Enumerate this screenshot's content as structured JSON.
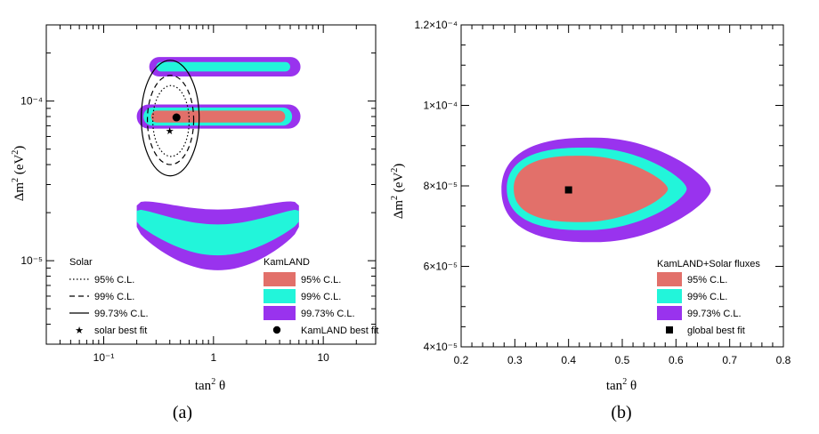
{
  "colors": {
    "c95": "#e2706a",
    "c99": "#22f5da",
    "c9973": "#9933ee"
  },
  "chart_data": [
    {
      "type": "area",
      "panel": "a",
      "caption": "(a)",
      "xlabel": "tan² θ",
      "ylabel": "Δm² (eV²)",
      "xscale": "log",
      "yscale": "log",
      "xlim": [
        0.03,
        30
      ],
      "ylim": [
        3e-06,
        0.0003
      ],
      "xticks": [
        {
          "v": 0.1,
          "label": "10⁻¹"
        },
        {
          "v": 1,
          "label": "1"
        },
        {
          "v": 10,
          "label": "10"
        }
      ],
      "yticks": [
        {
          "v": 1e-05,
          "label": "10⁻⁵"
        },
        {
          "v": 0.0001,
          "label": "10⁻⁴"
        }
      ],
      "legend_solar": {
        "title": "Solar",
        "items": [
          {
            "style": "dotted",
            "label": "95% C.L."
          },
          {
            "style": "dashed",
            "label": "99% C.L."
          },
          {
            "style": "solid",
            "label": "99.73% C.L."
          },
          {
            "style": "star",
            "label": "solar best fit"
          }
        ]
      },
      "legend_kamland": {
        "title": "KamLAND",
        "items": [
          {
            "level": "c95",
            "label": "95% C.L."
          },
          {
            "level": "c99",
            "label": "99% C.L."
          },
          {
            "level": "c9973",
            "label": "99.73% C.L."
          },
          {
            "level": "dot",
            "label": "KamLAND best fit"
          }
        ]
      },
      "kamland_best_fit": {
        "x": 0.46,
        "y": 7.9e-05
      },
      "solar_best_fit": {
        "x": 0.4,
        "y": 6.5e-05
      },
      "kamland_islands": [
        {
          "level": "c9973",
          "xmin": 0.26,
          "xmax": 6.2,
          "y": 0.000164,
          "hw": 1.15
        },
        {
          "level": "c99",
          "xmin": 0.3,
          "xmax": 5.0,
          "y": 0.000164,
          "hw": 1.07
        },
        {
          "level": "c9973",
          "xmin": 0.2,
          "xmax": 6.2,
          "y": 8e-05,
          "hw": 1.19
        },
        {
          "level": "c99",
          "xmin": 0.23,
          "xmax": 5.2,
          "y": 8e-05,
          "hw": 1.14
        },
        {
          "level": "c95",
          "xmin": 0.27,
          "xmax": 4.5,
          "y": 8e-05,
          "hw": 1.09
        }
      ],
      "kamland_band": {
        "xmin": 0.2,
        "xmax": 6.0,
        "ymid_ends": 1.9e-05,
        "ymid_center": 1.35e-05,
        "hw_c9973": 1.55,
        "hw_c99": 1.25
      },
      "solar_contours": [
        {
          "style": "dotted",
          "xmin": 0.28,
          "xmax": 0.6,
          "ymin": 4.5e-05,
          "ymax": 0.000125
        },
        {
          "style": "dashed",
          "xmin": 0.25,
          "xmax": 0.66,
          "ymin": 4e-05,
          "ymax": 0.000145
        },
        {
          "style": "solid",
          "xmin": 0.22,
          "xmax": 0.74,
          "ymin": 3.4e-05,
          "ymax": 0.00018
        }
      ]
    },
    {
      "type": "area",
      "panel": "b",
      "caption": "(b)",
      "xlabel": "tan² θ",
      "ylabel": "Δm² (eV²)",
      "xlim": [
        0.2,
        0.8
      ],
      "ylim": [
        4e-05,
        0.00012
      ],
      "xticks": [
        {
          "v": 0.2,
          "label": "0.2"
        },
        {
          "v": 0.3,
          "label": "0.3"
        },
        {
          "v": 0.4,
          "label": "0.4"
        },
        {
          "v": 0.5,
          "label": "0.5"
        },
        {
          "v": 0.6,
          "label": "0.6"
        },
        {
          "v": 0.7,
          "label": "0.7"
        },
        {
          "v": 0.8,
          "label": "0.8"
        }
      ],
      "yticks": [
        {
          "v": 4e-05,
          "label": "4×10⁻⁵"
        },
        {
          "v": 6e-05,
          "label": "6×10⁻⁵"
        },
        {
          "v": 8e-05,
          "label": "8×10⁻⁵"
        },
        {
          "v": 0.0001,
          "label": "1×10⁻⁴"
        },
        {
          "v": 0.00012,
          "label": "1.2×10⁻⁴"
        }
      ],
      "legend": {
        "title": "KamLAND+Solar fluxes",
        "items": [
          {
            "level": "c95",
            "label": "95% C.L."
          },
          {
            "level": "c99",
            "label": "99% C.L."
          },
          {
            "level": "c9973",
            "label": "99.73% C.L."
          },
          {
            "level": "square",
            "label": "global best fit"
          }
        ]
      },
      "best_fit": {
        "x": 0.4,
        "y": 7.9e-05
      },
      "contours": [
        {
          "level": "c9973",
          "xmin": 0.275,
          "xmax": 0.665,
          "ymin": 6.6e-05,
          "ymax": 9.2e-05
        },
        {
          "level": "c99",
          "xmin": 0.285,
          "xmax": 0.62,
          "ymin": 6.9e-05,
          "ymax": 8.95e-05
        },
        {
          "level": "c95",
          "xmin": 0.298,
          "xmax": 0.585,
          "ymin": 7.1e-05,
          "ymax": 8.75e-05
        }
      ]
    }
  ]
}
